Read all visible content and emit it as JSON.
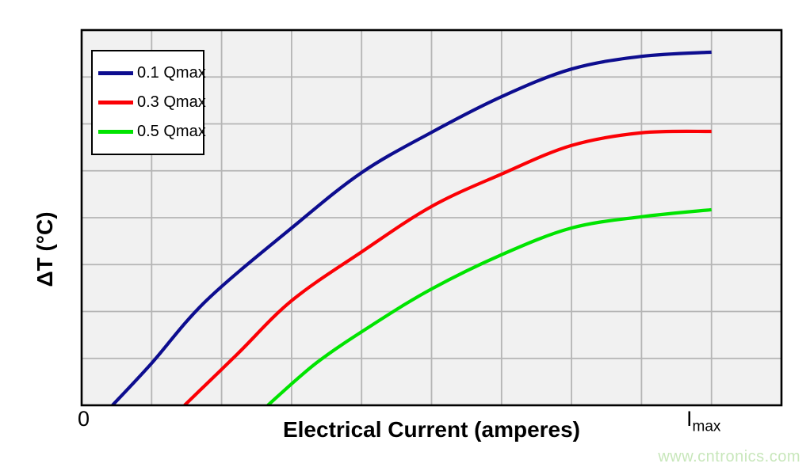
{
  "chart_data": {
    "type": "line",
    "title": "",
    "xlabel": "Electrical Current (amperes)",
    "ylabel": "ΔT (°C)",
    "grid": true,
    "legend_position": "top-left",
    "x_axis": {
      "min": 0,
      "max": 10,
      "divisions": 10,
      "ticks": [
        {
          "pos": 0,
          "label": "0"
        },
        {
          "pos": 9,
          "base": "I",
          "sub": "max"
        }
      ]
    },
    "y_axis": {
      "min": 0,
      "max": 8,
      "divisions": 8,
      "ticks": []
    },
    "series": [
      {
        "name": "0.1 Qmax",
        "color": "#0d0d8f",
        "points": [
          [
            0.44,
            0
          ],
          [
            0.99,
            0.88
          ],
          [
            1.78,
            2.23
          ],
          [
            3.0,
            3.78
          ],
          [
            4.0,
            4.96
          ],
          [
            5.0,
            5.82
          ],
          [
            6.0,
            6.58
          ],
          [
            7.0,
            7.17
          ],
          [
            8.0,
            7.44
          ],
          [
            9.0,
            7.53
          ]
        ]
      },
      {
        "name": "0.3 Qmax",
        "color": "#fb0005",
        "points": [
          [
            1.47,
            0
          ],
          [
            2.23,
            1.1
          ],
          [
            3.0,
            2.23
          ],
          [
            4.0,
            3.27
          ],
          [
            5.0,
            4.24
          ],
          [
            6.0,
            4.93
          ],
          [
            7.0,
            5.54
          ],
          [
            8.0,
            5.81
          ],
          [
            9.0,
            5.84
          ]
        ]
      },
      {
        "name": "0.5 Qmax",
        "color": "#00e400",
        "points": [
          [
            2.66,
            0
          ],
          [
            3.36,
            0.91
          ],
          [
            4.16,
            1.72
          ],
          [
            5.0,
            2.48
          ],
          [
            6.0,
            3.21
          ],
          [
            7.0,
            3.78
          ],
          [
            8.0,
            4.02
          ],
          [
            9.0,
            4.17
          ]
        ]
      }
    ]
  },
  "colors": {
    "plot_background": "#f1f1f1",
    "grid": "#b5b5b5",
    "plot_border": "#000000",
    "watermark": "#c8e7bb"
  },
  "watermark": "www.cntronics.com"
}
